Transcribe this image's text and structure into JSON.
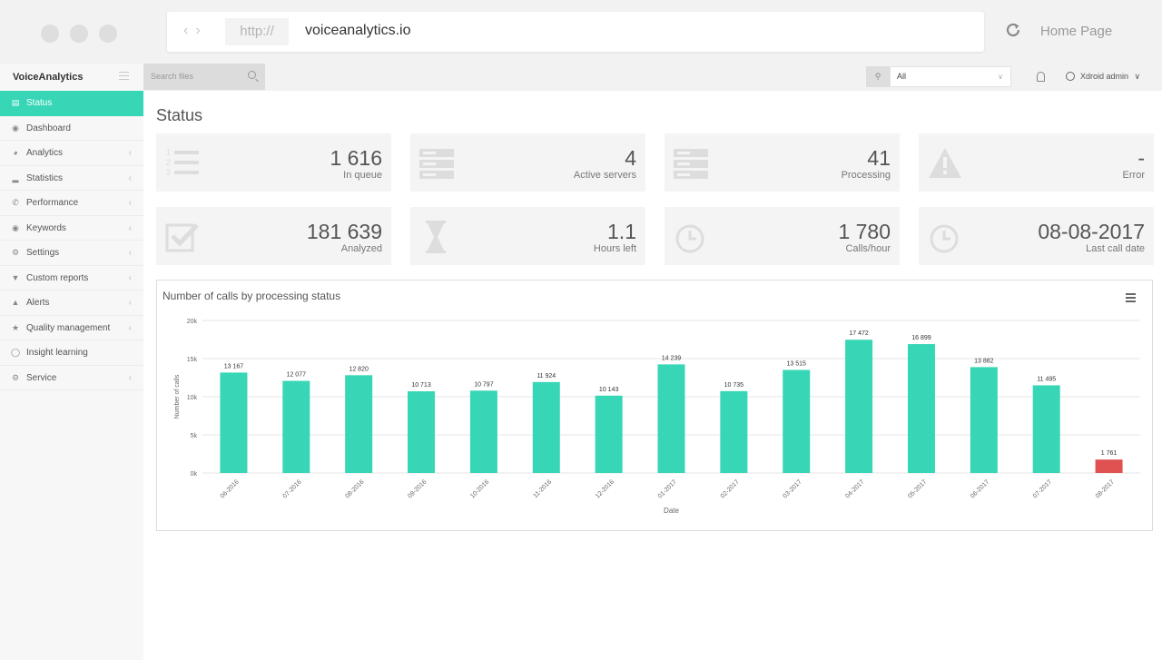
{
  "browser": {
    "protocol": "http://",
    "domain": "voiceanalytics.io",
    "home_label": "Home Page"
  },
  "brand": "VoiceAnalytics",
  "search": {
    "placeholder": "Search files"
  },
  "filter": {
    "selected": "All"
  },
  "user": {
    "name": "Xdroid admin"
  },
  "sidebar": {
    "items": [
      {
        "label": "Status",
        "icon": "table-icon",
        "active": true,
        "has_children": false
      },
      {
        "label": "Dashboard",
        "icon": "dashboard-icon",
        "active": false,
        "has_children": false
      },
      {
        "label": "Analytics",
        "icon": "headset-icon",
        "active": false,
        "has_children": true
      },
      {
        "label": "Statistics",
        "icon": "bar-chart-icon",
        "active": false,
        "has_children": true
      },
      {
        "label": "Performance",
        "icon": "phone-icon",
        "active": false,
        "has_children": true
      },
      {
        "label": "Keywords",
        "icon": "comments-icon",
        "active": false,
        "has_children": true
      },
      {
        "label": "Settings",
        "icon": "gear-icon",
        "active": false,
        "has_children": true
      },
      {
        "label": "Custom reports",
        "icon": "filter-icon",
        "active": false,
        "has_children": true
      },
      {
        "label": "Alerts",
        "icon": "bell-icon",
        "active": false,
        "has_children": true
      },
      {
        "label": "Quality management",
        "icon": "star-icon",
        "active": false,
        "has_children": true
      },
      {
        "label": "Insight learning",
        "icon": "lightbulb-icon",
        "active": false,
        "has_children": false
      },
      {
        "label": "Service",
        "icon": "gears-icon",
        "active": false,
        "has_children": true
      }
    ]
  },
  "page": {
    "title": "Status"
  },
  "tiles": [
    {
      "value": "1 616",
      "label": "In queue",
      "icon": "ordered-list-icon"
    },
    {
      "value": "4",
      "label": "Active servers",
      "icon": "server-icon"
    },
    {
      "value": "41",
      "label": "Processing",
      "icon": "server-icon"
    },
    {
      "value": "-",
      "label": "Error",
      "icon": "warning-icon"
    },
    {
      "value": "181 639",
      "label": "Analyzed",
      "icon": "checkbox-icon"
    },
    {
      "value": "1.1",
      "label": "Hours left",
      "icon": "hourglass-icon"
    },
    {
      "value": "1 780",
      "label": "Calls/hour",
      "icon": "clock-icon"
    },
    {
      "value": "08-08-2017",
      "label": "Last call date",
      "icon": "clock-icon"
    }
  ],
  "chart_data": {
    "type": "bar",
    "title": "Number of calls by processing status",
    "xlabel": "Date",
    "ylabel": "Number of calls",
    "ylim": [
      0,
      20000
    ],
    "yticks": [
      {
        "value": 0,
        "label": "0k"
      },
      {
        "value": 5000,
        "label": "5k"
      },
      {
        "value": 10000,
        "label": "10k"
      },
      {
        "value": 15000,
        "label": "15k"
      },
      {
        "value": 20000,
        "label": "20k"
      }
    ],
    "grid": true,
    "colors": {
      "default": "#36d6b6",
      "highlight": "#e05252"
    },
    "categories": [
      "06-2016",
      "07-2016",
      "08-2016",
      "09-2016",
      "10-2016",
      "11-2016",
      "12-2016",
      "01-2017",
      "02-2017",
      "03-2017",
      "04-2017",
      "05-2017",
      "06-2017",
      "07-2017",
      "08-2017"
    ],
    "values": [
      13167,
      12077,
      12820,
      10713,
      10797,
      11924,
      10143,
      14239,
      10735,
      13515,
      17472,
      16899,
      13882,
      11495,
      1761
    ],
    "value_labels": [
      "13 167",
      "12 077",
      "12 820",
      "10 713",
      "10 797",
      "11 924",
      "10 143",
      "14 239",
      "10 735",
      "13 515",
      "17 472",
      "16 899",
      "13 882",
      "11 495",
      "1 761"
    ],
    "highlighted_index": 14
  }
}
